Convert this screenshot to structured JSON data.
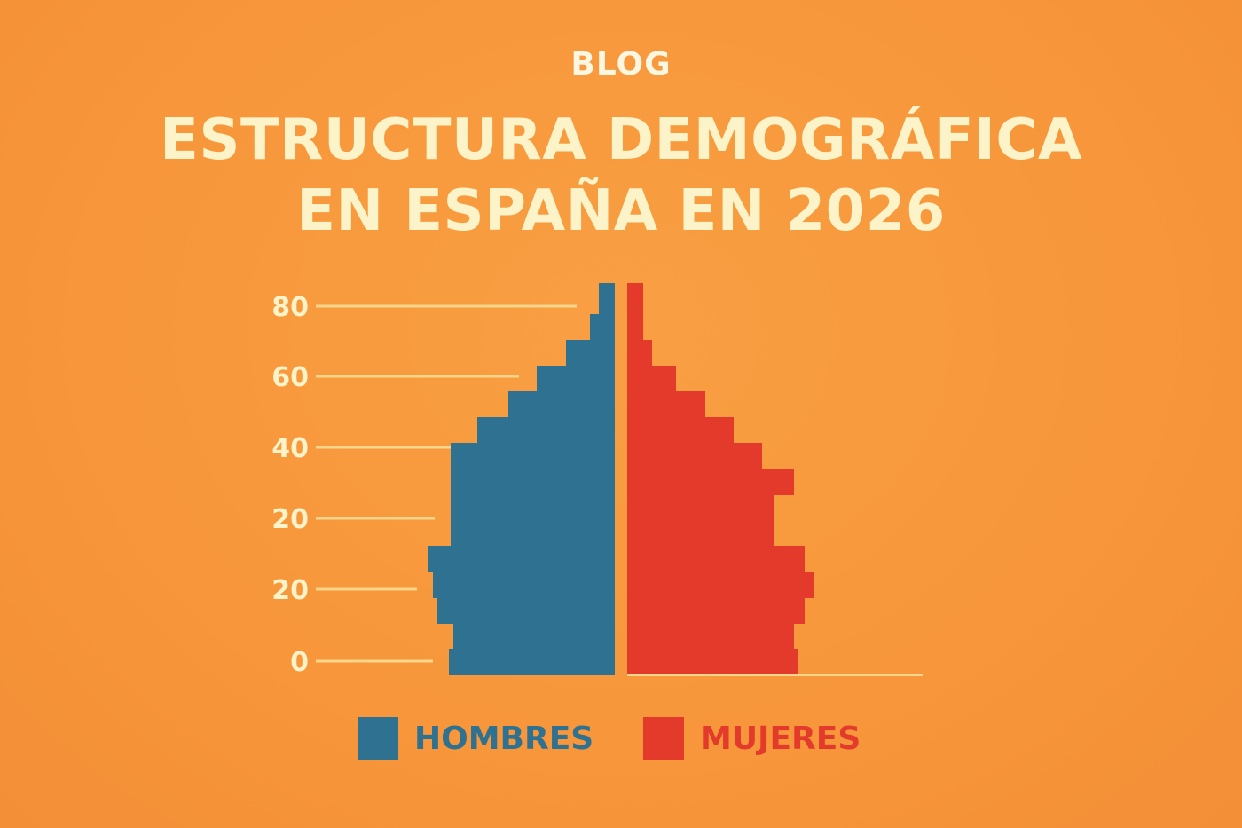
{
  "header": {
    "kicker": "BLOG",
    "title_line1": "ESTRUCTURA DEMOGRÁFICA",
    "title_line2": "EN ESPAÑA EN 2026"
  },
  "colors": {
    "hombres": "#2e7191",
    "mujeres": "#e33a2c",
    "text_light": "#fdf3c8",
    "gridline": "#f7d58a"
  },
  "chart_data": {
    "type": "bar",
    "orientation": "horizontal-pyramid",
    "y_tick_labels": [
      "0",
      "20",
      "20",
      "40",
      "60",
      "80"
    ],
    "legend_placement": "bottom",
    "series": [
      {
        "name": "HOMBRES",
        "values": [
          187,
          182,
          200,
          205,
          210,
          185,
          185,
          185,
          185,
          155,
          120,
          88,
          55,
          28,
          18
        ]
      },
      {
        "name": "MUJERES",
        "values": [
          192,
          188,
          200,
          210,
          200,
          165,
          165,
          188,
          152,
          120,
          88,
          55,
          28,
          18,
          18
        ]
      }
    ],
    "value_note_rows_bottom_to_top": true,
    "grid": true
  }
}
